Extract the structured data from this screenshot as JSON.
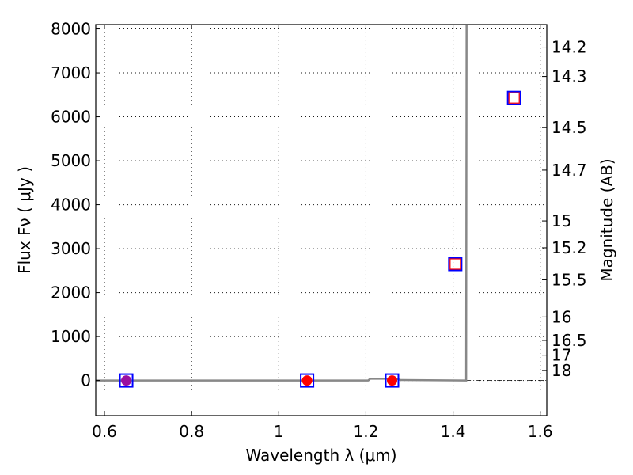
{
  "chart_data": {
    "type": "scatter",
    "title": "",
    "xlabel": "Wavelength  λ (μm)",
    "ylabel": "Flux  Fν  ( μJy )",
    "ylabel_right": "Magnitude (AB)",
    "xlim": [
      0.58,
      1.615
    ],
    "ylim": [
      -800,
      8100
    ],
    "grid": true,
    "legend": "none",
    "x_ticks": [
      {
        "value": 0.6,
        "label": "0.6"
      },
      {
        "value": 0.8,
        "label": "0.8"
      },
      {
        "value": 1.0,
        "label": "1"
      },
      {
        "value": 1.2,
        "label": "1.2"
      },
      {
        "value": 1.4,
        "label": "1.4"
      },
      {
        "value": 1.6,
        "label": "1.6"
      }
    ],
    "y_ticks": [
      {
        "value": 0,
        "label": "0"
      },
      {
        "value": 1000,
        "label": "1000"
      },
      {
        "value": 2000,
        "label": "2000"
      },
      {
        "value": 3000,
        "label": "3000"
      },
      {
        "value": 4000,
        "label": "4000"
      },
      {
        "value": 5000,
        "label": "5000"
      },
      {
        "value": 6000,
        "label": "6000"
      },
      {
        "value": 7000,
        "label": "7000"
      },
      {
        "value": 8000,
        "label": "8000"
      }
    ],
    "mag_ticks": [
      "14.2",
      "14.3",
      "14.5",
      "14.7",
      "15",
      "15.2",
      "15.5",
      "16",
      "16.5",
      "17",
      "18"
    ],
    "model_curve": {
      "color": "#888888",
      "points": [
        [
          0.58,
          0
        ],
        [
          1.205,
          0
        ],
        [
          1.21,
          40
        ],
        [
          1.27,
          40
        ],
        [
          1.28,
          10
        ],
        [
          1.43,
          0
        ],
        [
          1.431,
          8100
        ]
      ]
    },
    "observed_points": [
      {
        "x": 0.65,
        "y": 0,
        "color": "#9b0fa0"
      },
      {
        "x": 1.065,
        "y": 0,
        "color": "#ff0000"
      },
      {
        "x": 1.26,
        "y": 0,
        "color": "#ff0000"
      }
    ],
    "model_boxes": [
      {
        "x": 0.65,
        "y": 0
      },
      {
        "x": 1.065,
        "y": 0
      },
      {
        "x": 1.26,
        "y": 0
      },
      {
        "x": 1.405,
        "y": 2650
      },
      {
        "x": 1.54,
        "y": 6430
      }
    ],
    "upper_limit_boxes": [
      {
        "x": 1.405,
        "y": 2650
      },
      {
        "x": 1.54,
        "y": 6430
      }
    ],
    "colors": {
      "box_outer": "#0000ff",
      "box_inner": "#ff0000",
      "axis": "#000000"
    }
  }
}
